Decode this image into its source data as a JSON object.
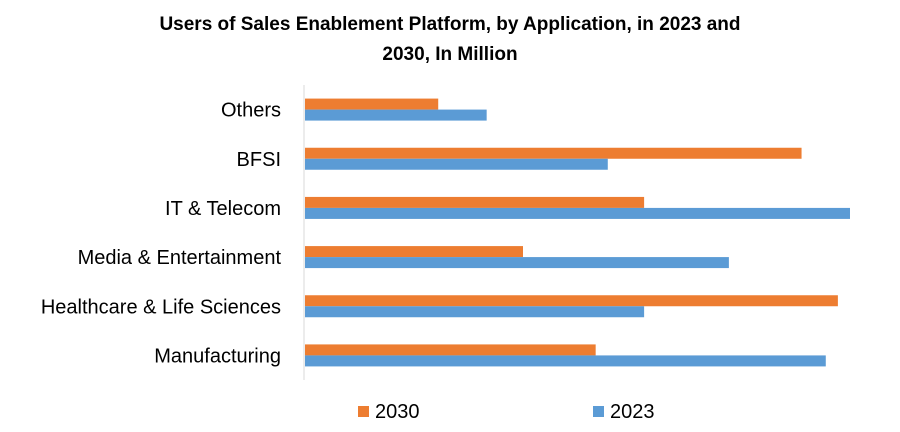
{
  "chart_data": {
    "type": "bar",
    "orientation": "horizontal",
    "title": "Users of Sales Enablement Platform, by Application,  in 2023 and 2030, In Million",
    "categories": [
      "Others",
      "BFSI",
      "IT & Telecom",
      "Media & Entertainment",
      "Healthcare & Life Sciences",
      "Manufacturing"
    ],
    "series": [
      {
        "name": "2030",
        "color": "#ED7D31",
        "values": [
          11,
          41,
          28,
          18,
          44,
          24
        ]
      },
      {
        "name": "2023",
        "color": "#5B9BD5",
        "values": [
          15,
          25,
          45,
          35,
          28,
          43
        ]
      }
    ],
    "xlim": [
      0,
      45
    ],
    "grid": false,
    "legend_position": "bottom"
  }
}
